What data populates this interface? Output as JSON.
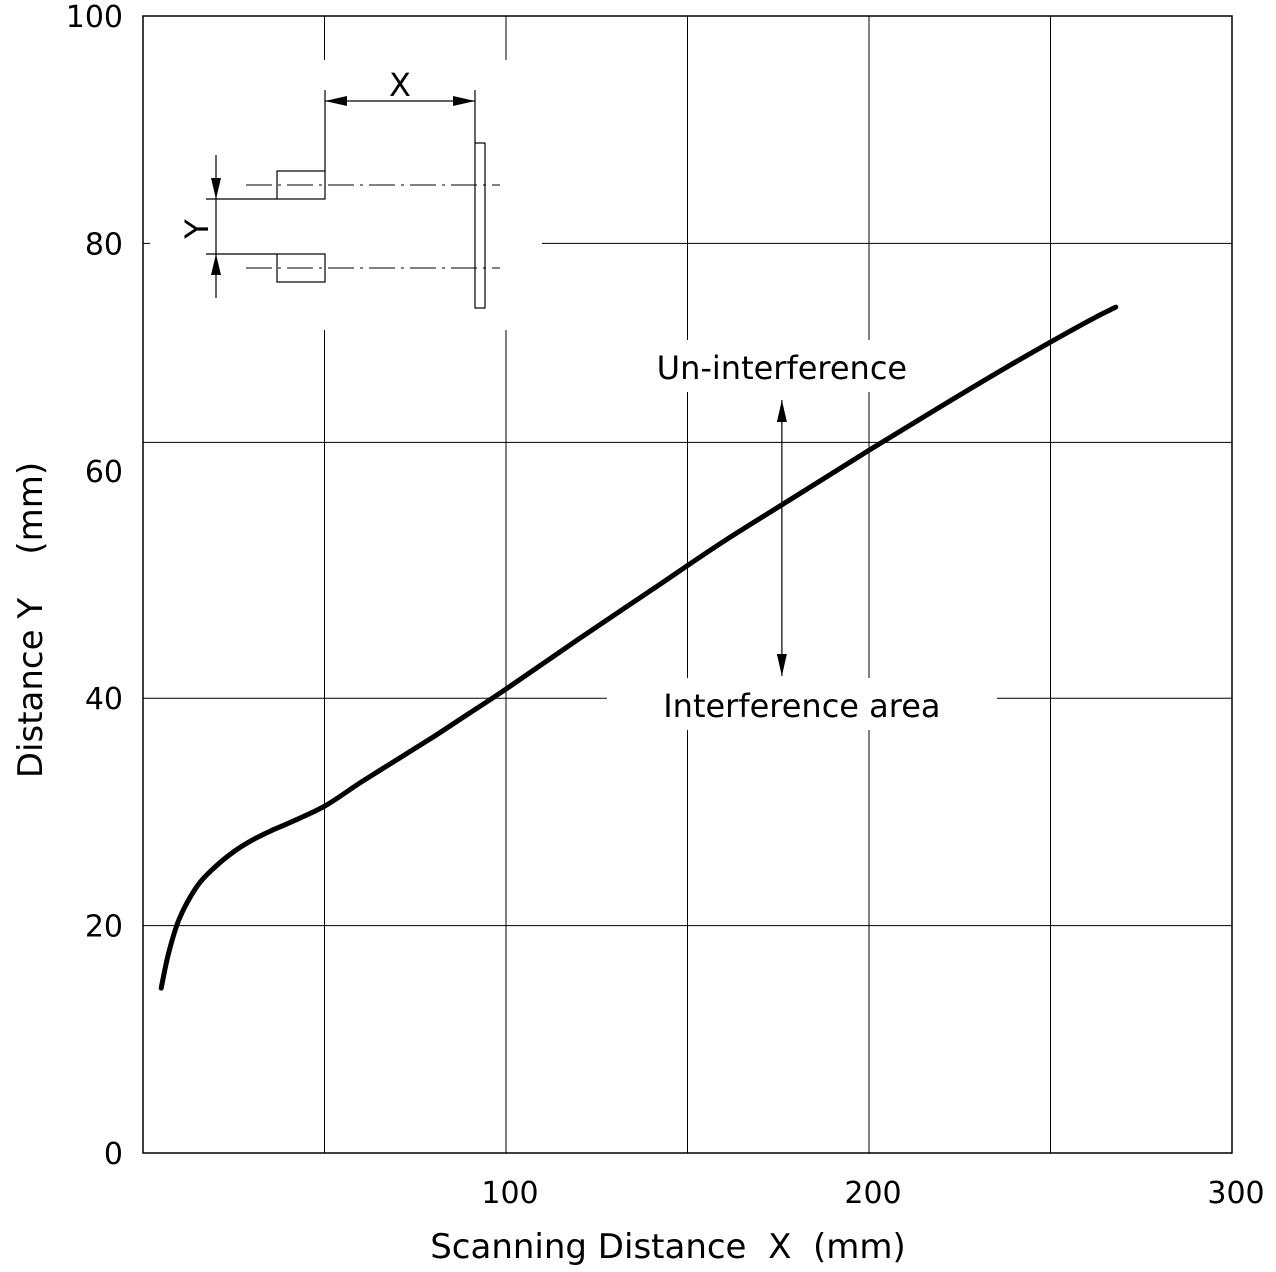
{
  "chart_data": {
    "type": "line",
    "title": "",
    "xlabel": "Scanning Distance  X  (mm)",
    "ylabel": "Distance Y    (mm)",
    "xlim": [
      0,
      300
    ],
    "ylim": [
      0,
      100
    ],
    "x_ticks": [
      100,
      200,
      300
    ],
    "y_ticks": [
      0,
      20,
      40,
      60,
      80,
      100
    ],
    "x_grid": [
      50,
      100,
      150,
      200,
      250
    ],
    "y_grid": [
      20,
      40,
      62.5,
      80
    ],
    "grid": true,
    "series": [
      {
        "name": "",
        "color": "#000000",
        "x": [
          5,
          7,
          10,
          15,
          20,
          25,
          30,
          35,
          40,
          50,
          60,
          70,
          80,
          90,
          100,
          120,
          140,
          160,
          180,
          200,
          220,
          240,
          260,
          268
        ],
        "y": [
          14.5,
          17.5,
          20.6,
          23.5,
          25.2,
          26.5,
          27.5,
          28.3,
          29.0,
          30.5,
          32.6,
          34.6,
          36.6,
          38.7,
          40.8,
          45.2,
          49.5,
          53.8,
          57.8,
          61.8,
          65.7,
          69.5,
          73.1,
          74.4
        ]
      }
    ],
    "annotations": {
      "upper_region": "Un-interference",
      "lower_region": "Interference area",
      "arrow_x": 176
    },
    "inset": {
      "x_symbol": "X",
      "y_symbol": "Y"
    }
  }
}
